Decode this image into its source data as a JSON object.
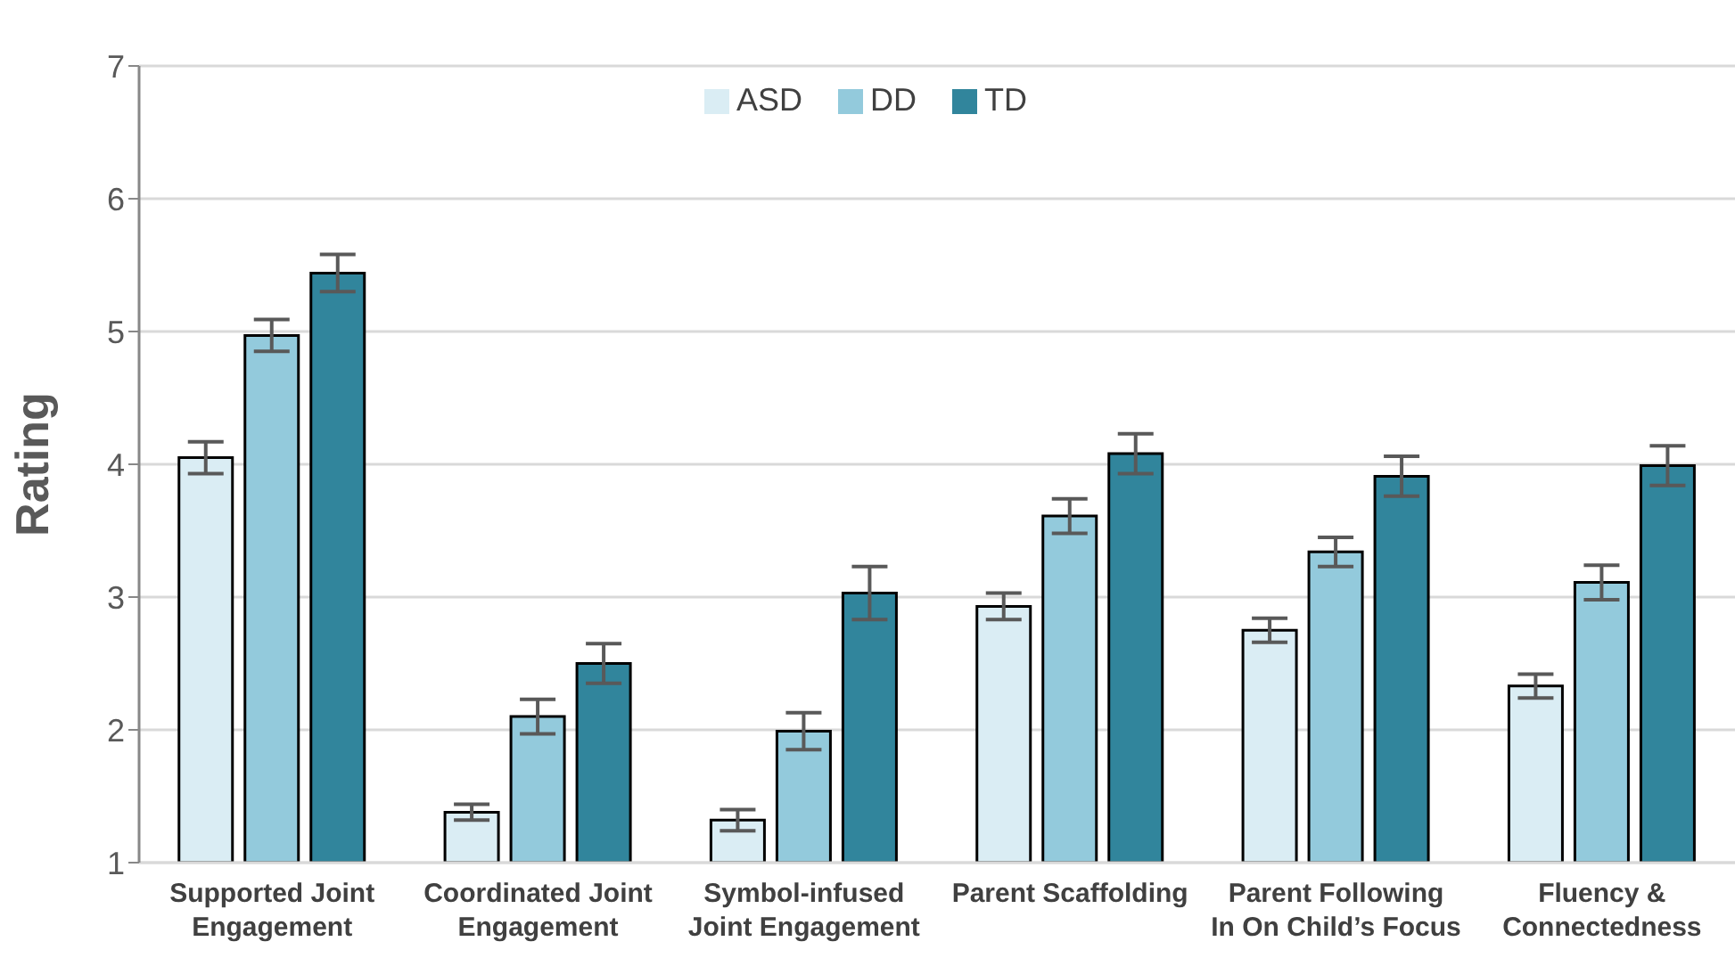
{
  "chart_data": {
    "type": "bar",
    "ylabel": "Rating",
    "categories": [
      "Supported Joint Engagement",
      "Coordinated Joint Engagement",
      "Symbol-infused Joint Engagement",
      "Parent Scaffolding",
      "Parent Following In On Child’s Focus",
      "Fluency & Connectedness"
    ],
    "series": [
      {
        "name": "ASD",
        "color": "#daedf4",
        "values": [
          4.05,
          1.38,
          1.32,
          2.93,
          2.75,
          2.33
        ],
        "errors": [
          0.12,
          0.06,
          0.08,
          0.1,
          0.09,
          0.09
        ]
      },
      {
        "name": "DD",
        "color": "#93cadc",
        "values": [
          4.97,
          2.1,
          1.99,
          3.61,
          3.34,
          3.11
        ],
        "errors": [
          0.12,
          0.13,
          0.14,
          0.13,
          0.11,
          0.13
        ]
      },
      {
        "name": "TD",
        "color": "#31859c",
        "values": [
          5.44,
          2.5,
          3.03,
          4.08,
          3.91,
          3.99
        ],
        "errors": [
          0.14,
          0.15,
          0.2,
          0.15,
          0.15,
          0.15
        ]
      }
    ],
    "ylim": [
      1,
      7
    ],
    "yticks": [
      1,
      2,
      3,
      4,
      5,
      6,
      7
    ],
    "grid": "y",
    "legend": "top"
  }
}
